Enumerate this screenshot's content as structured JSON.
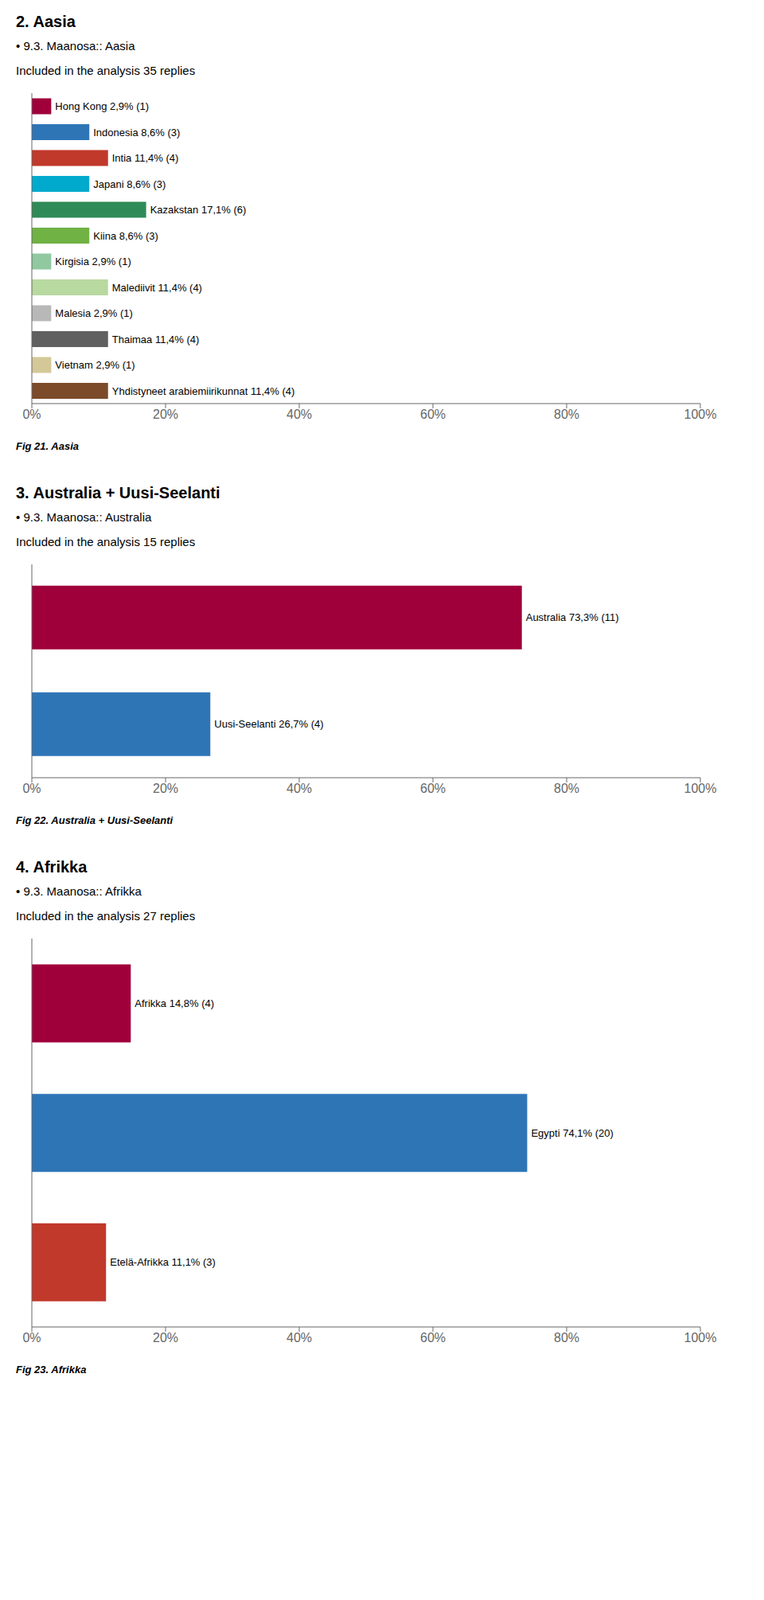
{
  "chart_data": [
    {
      "type": "bar",
      "orientation": "horizontal",
      "title": "2. Aasia",
      "subtitle": "• 9.3. Maanosa:: Aasia",
      "annotations": [
        "Included in the analysis 35 replies",
        "Fig 21. Aasia"
      ],
      "values": [
        2.9,
        8.6,
        11.4,
        8.6,
        17.1,
        8.6,
        2.9,
        11.4,
        2.9,
        11.4,
        2.9,
        11.4
      ],
      "value_labels": [
        "Hong Kong 2,9% (1)",
        "Indonesia 8,6% (3)",
        "Intia 11,4% (4)",
        "Japani 8,6% (3)",
        "Kazakstan 17,1% (6)",
        "Kiina 8,6% (3)",
        "Kirgisia 2,9% (1)",
        "Malediivit 11,4% (4)",
        "Malesia 2,9% (1)",
        "Thaimaa 11,4% (4)",
        "Vietnam 2,9% (1)",
        "Yhdistyneet arabiemiirikunnat 11,4% (4)"
      ],
      "colors": [
        "#A0003A",
        "#2E75B6",
        "#C0392B",
        "#00AACC",
        "#2E8B57",
        "#70B244",
        "#90C8A0",
        "#B8D9A0",
        "#B8B8B8",
        "#606060",
        "#D4C898",
        "#7B4B2A"
      ],
      "data_labels": true,
      "tick_labels": "x",
      "grid": false,
      "xlim": [
        0,
        100
      ],
      "xticks": [
        {
          "value": 0,
          "label": "0%"
        },
        {
          "value": 20,
          "label": "20%"
        },
        {
          "value": 40,
          "label": "40%"
        },
        {
          "value": 60,
          "label": "60%"
        },
        {
          "value": 80,
          "label": "80%"
        },
        {
          "value": 100,
          "label": "100%"
        }
      ]
    },
    {
      "type": "bar",
      "orientation": "horizontal",
      "title": "3. Australia + Uusi-Seelanti",
      "subtitle": "• 9.3. Maanosa:: Australia",
      "annotations": [
        "Included in the analysis 15 replies",
        "Fig 22. Australia + Uusi-Seelanti"
      ],
      "values": [
        73.3,
        26.7
      ],
      "value_labels": [
        "Australia 73,3% (11)",
        "Uusi-Seelanti 26,7% (4)"
      ],
      "colors": [
        "#A0003A",
        "#2E75B6"
      ],
      "data_labels": true,
      "tick_labels": "x",
      "grid": false,
      "xlim": [
        0,
        100
      ],
      "xticks": [
        {
          "value": 0,
          "label": "0%"
        },
        {
          "value": 20,
          "label": "20%"
        },
        {
          "value": 40,
          "label": "40%"
        },
        {
          "value": 60,
          "label": "60%"
        },
        {
          "value": 80,
          "label": "80%"
        },
        {
          "value": 100,
          "label": "100%"
        }
      ]
    },
    {
      "type": "bar",
      "orientation": "horizontal",
      "title": "4. Afrikka",
      "subtitle": "• 9.3. Maanosa:: Afrikka",
      "annotations": [
        "Included in the analysis 27 replies",
        "Fig 23. Afrikka"
      ],
      "values": [
        14.8,
        74.1,
        11.1
      ],
      "value_labels": [
        "Afrikka 14,8% (4)",
        "Egypti 74,1% (20)",
        "Etelä-Afrikka 11,1% (3)"
      ],
      "colors": [
        "#A0003A",
        "#2E75B6",
        "#C0392B"
      ],
      "data_labels": true,
      "tick_labels": "x",
      "grid": false,
      "xlim": [
        0,
        100
      ],
      "xticks": [
        {
          "value": 0,
          "label": "0%"
        },
        {
          "value": 20,
          "label": "20%"
        },
        {
          "value": 40,
          "label": "40%"
        },
        {
          "value": 60,
          "label": "60%"
        },
        {
          "value": 80,
          "label": "80%"
        },
        {
          "value": 100,
          "label": "100%"
        }
      ]
    }
  ]
}
